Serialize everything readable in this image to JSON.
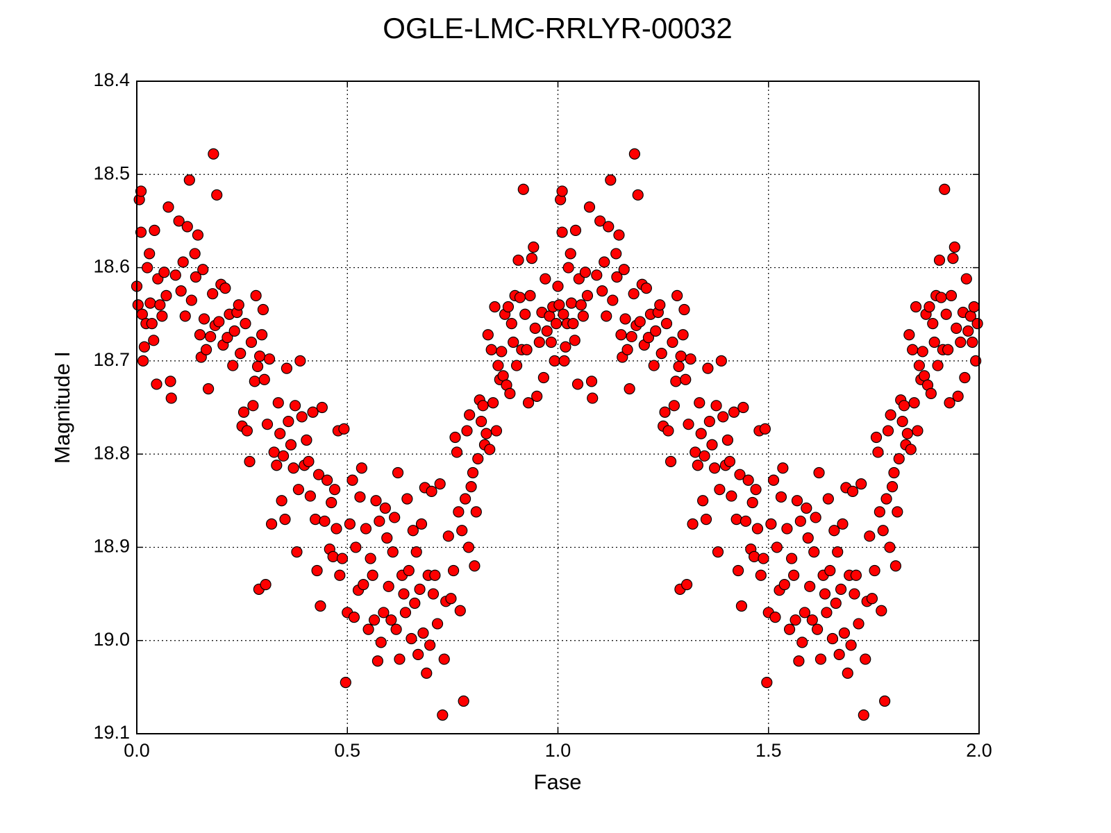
{
  "chart_data": {
    "type": "scatter",
    "title": "OGLE-LMC-RRLYR-00032",
    "x_label": "Fase",
    "y_label": "Magnitude I",
    "color": "#ff0000",
    "edge_color": "#000000",
    "grid": true,
    "y_inverted": true,
    "xlim": [
      0,
      2
    ],
    "ylim": [
      18.4,
      19.1
    ],
    "xticks": [
      {
        "value": 0,
        "label": "0.0"
      },
      0.5,
      {
        "value": 1,
        "label": "1.0"
      },
      1.5,
      {
        "value": 2,
        "label": "2.0"
      }
    ],
    "yticks": [
      18.4,
      18.5,
      18.6,
      18.7,
      18.8,
      18.9,
      {
        "value": 19,
        "label": "19.0"
      },
      19.1
    ],
    "x": [
      0,
      0.003,
      0.006,
      0.01,
      0.01,
      0.013,
      0.015,
      0.018,
      0.022,
      0.025,
      0.03,
      0.032,
      0.036,
      0.04,
      0.042,
      0.047,
      0.05,
      0.055,
      0.06,
      0.065,
      0.07,
      0.075,
      0.08,
      0.082,
      0.092,
      0.1,
      0.105,
      0.11,
      0.115,
      0.12,
      0.125,
      0.13,
      0.138,
      0.14,
      0.145,
      0.15,
      0.153,
      0.157,
      0.16,
      0.165,
      0.17,
      0.175,
      0.18,
      0.182,
      0.186,
      0.19,
      0.195,
      0.2,
      0.205,
      0.21,
      0.215,
      0.22,
      0.228,
      0.232,
      0.238,
      0.242,
      0.246,
      0.25,
      0.254,
      0.258,
      0.262,
      0.268,
      0.272,
      0.276,
      0.28,
      0.283,
      0.287,
      0.29,
      0.292,
      0.297,
      0.3,
      0.303,
      0.306,
      0.31,
      0.315,
      0.32,
      0.326,
      0.332,
      0.336,
      0.34,
      0.344,
      0.348,
      0.352,
      0.356,
      0.36,
      0.366,
      0.372,
      0.376,
      0.38,
      0.384,
      0.388,
      0.392,
      0.398,
      0.403,
      0.408,
      0.412,
      0.418,
      0.424,
      0.428,
      0.432,
      0.436,
      0.44,
      0.446,
      0.452,
      0.458,
      0.462,
      0.466,
      0.47,
      0.474,
      0.478,
      0.482,
      0.488,
      0.492,
      0.496,
      0.5,
      0.506,
      0.512,
      0.516,
      0.52,
      0.526,
      0.53,
      0.534,
      0.538,
      0.544,
      0.55,
      0.555,
      0.56,
      0.564,
      0.568,
      0.572,
      0.576,
      0.58,
      0.586,
      0.59,
      0.594,
      0.598,
      0.604,
      0.608,
      0.612,
      0.616,
      0.62,
      0.624,
      0.63,
      0.634,
      0.638,
      0.642,
      0.646,
      0.652,
      0.656,
      0.66,
      0.664,
      0.668,
      0.672,
      0.676,
      0.68,
      0.684,
      0.688,
      0.692,
      0.696,
      0.7,
      0.704,
      0.708,
      0.714,
      0.72,
      0.726,
      0.73,
      0.734,
      0.74,
      0.746,
      0.752,
      0.756,
      0.76,
      0.764,
      0.768,
      0.772,
      0.776,
      0.78,
      0.784,
      0.788,
      0.79,
      0.794,
      0.798,
      0.802,
      0.806,
      0.81,
      0.814,
      0.818,
      0.822,
      0.826,
      0.83,
      0.834,
      0.838,
      0.842,
      0.846,
      0.85,
      0.854,
      0.858,
      0.862,
      0.866,
      0.87,
      0.874,
      0.878,
      0.882,
      0.886,
      0.89,
      0.894,
      0.898,
      0.902,
      0.906,
      0.91,
      0.914,
      0.918,
      0.922,
      0.926,
      0.93,
      0.934,
      0.938,
      0.942,
      0.946,
      0.95,
      0.956,
      0.962,
      0.966,
      0.97,
      0.974,
      0.98,
      0.984,
      0.988,
      0.992,
      0.996,
      1,
      1.003,
      1.006,
      1.01,
      1.01,
      1.013,
      1.015,
      1.018,
      1.022,
      1.025,
      1.03,
      1.032,
      1.036,
      1.04,
      1.042,
      1.047,
      1.05,
      1.055,
      1.06,
      1.065,
      1.07,
      1.075,
      1.08,
      1.082,
      1.092,
      1.1,
      1.105,
      1.11,
      1.115,
      1.12,
      1.125,
      1.13,
      1.138,
      1.14,
      1.145,
      1.15,
      1.153,
      1.157,
      1.16,
      1.165,
      1.17,
      1.175,
      1.18,
      1.182,
      1.186,
      1.19,
      1.195,
      1.2,
      1.205,
      1.21,
      1.215,
      1.22,
      1.228,
      1.232,
      1.238,
      1.242,
      1.246,
      1.25,
      1.254,
      1.258,
      1.262,
      1.268,
      1.272,
      1.276,
      1.28,
      1.283,
      1.287,
      1.29,
      1.292,
      1.297,
      1.3,
      1.303,
      1.306,
      1.31,
      1.315,
      1.32,
      1.326,
      1.332,
      1.336,
      1.34,
      1.344,
      1.348,
      1.352,
      1.356,
      1.36,
      1.366,
      1.372,
      1.376,
      1.38,
      1.384,
      1.388,
      1.392,
      1.398,
      1.403,
      1.408,
      1.412,
      1.418,
      1.424,
      1.428,
      1.432,
      1.436,
      1.44,
      1.446,
      1.452,
      1.458,
      1.462,
      1.466,
      1.47,
      1.474,
      1.478,
      1.482,
      1.488,
      1.492,
      1.496,
      1.5,
      1.506,
      1.512,
      1.516,
      1.52,
      1.526,
      1.53,
      1.534,
      1.538,
      1.544,
      1.55,
      1.555,
      1.56,
      1.564,
      1.568,
      1.572,
      1.576,
      1.58,
      1.586,
      1.59,
      1.594,
      1.598,
      1.604,
      1.608,
      1.612,
      1.616,
      1.62,
      1.624,
      1.63,
      1.634,
      1.638,
      1.642,
      1.646,
      1.652,
      1.656,
      1.66,
      1.664,
      1.668,
      1.672,
      1.676,
      1.68,
      1.684,
      1.688,
      1.692,
      1.696,
      1.7,
      1.704,
      1.708,
      1.714,
      1.72,
      1.726,
      1.73,
      1.734,
      1.74,
      1.746,
      1.752,
      1.756,
      1.76,
      1.764,
      1.768,
      1.772,
      1.776,
      1.78,
      1.784,
      1.788,
      1.79,
      1.794,
      1.798,
      1.802,
      1.806,
      1.81,
      1.814,
      1.818,
      1.822,
      1.826,
      1.83,
      1.834,
      1.838,
      1.842,
      1.846,
      1.85,
      1.854,
      1.858,
      1.862,
      1.866,
      1.87,
      1.874,
      1.878,
      1.882,
      1.886,
      1.89,
      1.894,
      1.898,
      1.902,
      1.906,
      1.91,
      1.914,
      1.918,
      1.922,
      1.926,
      1.93,
      1.934,
      1.938,
      1.942,
      1.946,
      1.95,
      1.956,
      1.962,
      1.966,
      1.97,
      1.974,
      1.98,
      1.984,
      1.988,
      1.992,
      1.996
    ],
    "values": [
      18.62,
      18.64,
      18.527,
      18.518,
      18.562,
      18.65,
      18.7,
      18.685,
      18.66,
      18.6,
      18.585,
      18.638,
      18.66,
      18.678,
      18.56,
      18.725,
      18.612,
      18.64,
      18.652,
      18.605,
      18.63,
      18.535,
      18.722,
      18.74,
      18.608,
      18.55,
      18.625,
      18.594,
      18.652,
      18.556,
      18.506,
      18.635,
      18.585,
      18.61,
      18.565,
      18.672,
      18.696,
      18.602,
      18.655,
      18.688,
      18.73,
      18.674,
      18.628,
      18.478,
      18.662,
      18.522,
      18.658,
      18.618,
      18.683,
      18.622,
      18.675,
      18.65,
      18.705,
      18.668,
      18.648,
      18.64,
      18.692,
      18.77,
      18.755,
      18.66,
      18.775,
      18.808,
      18.68,
      18.748,
      18.722,
      18.63,
      18.706,
      18.945,
      18.695,
      18.672,
      18.645,
      18.72,
      18.94,
      18.768,
      18.698,
      18.875,
      18.798,
      18.812,
      18.745,
      18.778,
      18.85,
      18.802,
      18.87,
      18.708,
      18.765,
      18.79,
      18.815,
      18.748,
      18.905,
      18.838,
      18.7,
      18.76,
      18.812,
      18.785,
      18.808,
      18.845,
      18.755,
      18.87,
      18.925,
      18.822,
      18.963,
      18.75,
      18.872,
      18.828,
      18.902,
      18.852,
      18.91,
      18.838,
      18.88,
      18.775,
      18.93,
      18.912,
      18.773,
      19.045,
      18.97,
      18.875,
      18.828,
      18.975,
      18.9,
      18.946,
      18.846,
      18.815,
      18.94,
      18.88,
      18.988,
      18.912,
      18.93,
      18.978,
      18.85,
      19.022,
      18.872,
      19.002,
      18.97,
      18.858,
      18.89,
      18.942,
      18.978,
      18.905,
      18.868,
      18.988,
      18.82,
      19.02,
      18.93,
      18.95,
      18.97,
      18.848,
      18.925,
      18.998,
      18.882,
      18.96,
      18.905,
      19.015,
      18.945,
      18.875,
      18.992,
      18.836,
      19.035,
      18.93,
      19.005,
      18.84,
      18.95,
      18.93,
      18.982,
      18.832,
      19.08,
      19.02,
      18.958,
      18.888,
      18.955,
      18.925,
      18.782,
      18.798,
      18.862,
      18.968,
      18.882,
      19.065,
      18.848,
      18.775,
      18.9,
      18.758,
      18.835,
      18.82,
      18.92,
      18.862,
      18.805,
      18.742,
      18.765,
      18.748,
      18.79,
      18.778,
      18.672,
      18.795,
      18.688,
      18.745,
      18.642,
      18.775,
      18.705,
      18.72,
      18.69,
      18.716,
      18.65,
      18.726,
      18.642,
      18.735,
      18.66,
      18.68,
      18.63,
      18.705,
      18.592,
      18.632,
      18.688,
      18.516,
      18.65,
      18.688,
      18.745,
      18.63,
      18.59,
      18.578,
      18.665,
      18.738,
      18.68,
      18.648,
      18.718,
      18.612,
      18.668,
      18.652,
      18.68,
      18.642,
      18.7,
      18.66,
      18.62,
      18.64,
      18.527,
      18.518,
      18.562,
      18.65,
      18.7,
      18.685,
      18.66,
      18.6,
      18.585,
      18.638,
      18.66,
      18.678,
      18.56,
      18.725,
      18.612,
      18.64,
      18.652,
      18.605,
      18.63,
      18.535,
      18.722,
      18.74,
      18.608,
      18.55,
      18.625,
      18.594,
      18.652,
      18.556,
      18.506,
      18.635,
      18.585,
      18.61,
      18.565,
      18.672,
      18.696,
      18.602,
      18.655,
      18.688,
      18.73,
      18.674,
      18.628,
      18.478,
      18.662,
      18.522,
      18.658,
      18.618,
      18.683,
      18.622,
      18.675,
      18.65,
      18.705,
      18.668,
      18.648,
      18.64,
      18.692,
      18.77,
      18.755,
      18.66,
      18.775,
      18.808,
      18.68,
      18.748,
      18.722,
      18.63,
      18.706,
      18.945,
      18.695,
      18.672,
      18.645,
      18.72,
      18.94,
      18.768,
      18.698,
      18.875,
      18.798,
      18.812,
      18.745,
      18.778,
      18.85,
      18.802,
      18.87,
      18.708,
      18.765,
      18.79,
      18.815,
      18.748,
      18.905,
      18.838,
      18.7,
      18.76,
      18.812,
      18.785,
      18.808,
      18.845,
      18.755,
      18.87,
      18.925,
      18.822,
      18.963,
      18.75,
      18.872,
      18.828,
      18.902,
      18.852,
      18.91,
      18.838,
      18.88,
      18.775,
      18.93,
      18.912,
      18.773,
      19.045,
      18.97,
      18.875,
      18.828,
      18.975,
      18.9,
      18.946,
      18.846,
      18.815,
      18.94,
      18.88,
      18.988,
      18.912,
      18.93,
      18.978,
      18.85,
      19.022,
      18.872,
      19.002,
      18.97,
      18.858,
      18.89,
      18.942,
      18.978,
      18.905,
      18.868,
      18.988,
      18.82,
      19.02,
      18.93,
      18.95,
      18.97,
      18.848,
      18.925,
      18.998,
      18.882,
      18.96,
      18.905,
      19.015,
      18.945,
      18.875,
      18.992,
      18.836,
      19.035,
      18.93,
      19.005,
      18.84,
      18.95,
      18.93,
      18.982,
      18.832,
      19.08,
      19.02,
      18.958,
      18.888,
      18.955,
      18.925,
      18.782,
      18.798,
      18.862,
      18.968,
      18.882,
      19.065,
      18.848,
      18.775,
      18.9,
      18.758,
      18.835,
      18.82,
      18.92,
      18.862,
      18.805,
      18.742,
      18.765,
      18.748,
      18.79,
      18.778,
      18.672,
      18.795,
      18.688,
      18.745,
      18.642,
      18.775,
      18.705,
      18.72,
      18.69,
      18.716,
      18.65,
      18.726,
      18.642,
      18.735,
      18.66,
      18.68,
      18.63,
      18.705,
      18.592,
      18.632,
      18.688,
      18.516,
      18.65,
      18.688,
      18.745,
      18.63,
      18.59,
      18.578,
      18.665,
      18.738,
      18.68,
      18.648,
      18.718,
      18.612,
      18.668,
      18.652,
      18.68,
      18.642,
      18.7,
      18.66
    ]
  }
}
